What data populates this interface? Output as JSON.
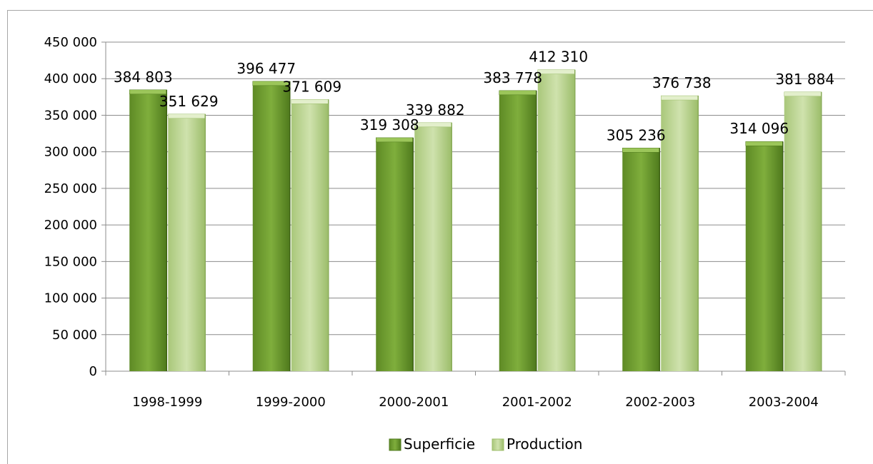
{
  "chart_data": {
    "type": "bar",
    "categories": [
      "1998-1999",
      "1999-2000",
      "2000-2001",
      "2001-2002",
      "2002-2003",
      "2003-2004"
    ],
    "series": [
      {
        "name": "Superficie",
        "values": [
          384803,
          396477,
          319308,
          383778,
          305236,
          314096
        ],
        "labels": [
          "384 803",
          "396 477",
          "319 308",
          "383 778",
          "305 236",
          "314 096"
        ],
        "color": "#77a336"
      },
      {
        "name": "Production",
        "values": [
          351629,
          371609,
          339882,
          412310,
          376738,
          381884
        ],
        "labels": [
          "351 629",
          "371 609",
          "339 882",
          "412 310",
          "376 738",
          "381 884"
        ],
        "color": "#c2d99a"
      }
    ],
    "ylim": [
      0,
      450000
    ],
    "yticks": [
      0,
      50000,
      100000,
      150000,
      200000,
      250000,
      300000,
      350000,
      400000,
      450000
    ],
    "ytick_labels": [
      "0",
      "50 000",
      "100 000",
      "150 000",
      "200 000",
      "250 000",
      "300 000",
      "350 000",
      "400 000",
      "450 000"
    ],
    "grid": true,
    "legend_position": "bottom",
    "title": "",
    "xlabel": "",
    "ylabel": ""
  }
}
